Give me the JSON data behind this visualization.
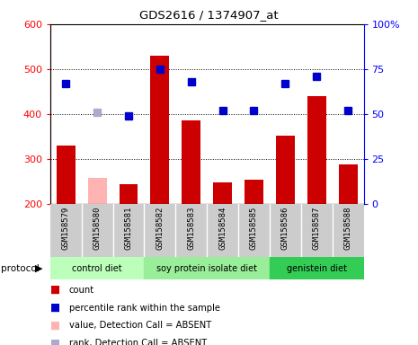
{
  "title": "GDS2616 / 1374907_at",
  "samples": [
    "GSM158579",
    "GSM158580",
    "GSM158581",
    "GSM158582",
    "GSM158583",
    "GSM158584",
    "GSM158585",
    "GSM158586",
    "GSM158587",
    "GSM158588"
  ],
  "counts": [
    330,
    258,
    244,
    530,
    385,
    248,
    253,
    352,
    440,
    288
  ],
  "absent_count": [
    false,
    true,
    false,
    false,
    false,
    false,
    false,
    false,
    false,
    false
  ],
  "percentile": [
    67,
    51,
    49,
    75,
    68,
    52,
    52,
    67,
    71,
    52
  ],
  "absent_rank": [
    false,
    true,
    false,
    false,
    false,
    false,
    false,
    false,
    false,
    false
  ],
  "ylim_left": [
    200,
    600
  ],
  "ylim_right": [
    0,
    100
  ],
  "yticks_left": [
    200,
    300,
    400,
    500,
    600
  ],
  "yticks_right": [
    0,
    25,
    50,
    75,
    100
  ],
  "bar_color_present": "#cc0000",
  "bar_color_absent": "#ffb3b3",
  "dot_color_present": "#0000cc",
  "dot_color_absent": "#aaaacc",
  "group_starts": [
    0,
    3,
    7
  ],
  "group_ends": [
    2,
    6,
    9
  ],
  "group_labels": [
    "control diet",
    "soy protein isolate diet",
    "genistein diet"
  ],
  "group_colors": [
    "#bbffbb",
    "#99ee99",
    "#33cc55"
  ],
  "legend_labels": [
    "count",
    "percentile rank within the sample",
    "value, Detection Call = ABSENT",
    "rank, Detection Call = ABSENT"
  ],
  "legend_colors": [
    "#cc0000",
    "#0000cc",
    "#ffb3b3",
    "#aaaacc"
  ]
}
